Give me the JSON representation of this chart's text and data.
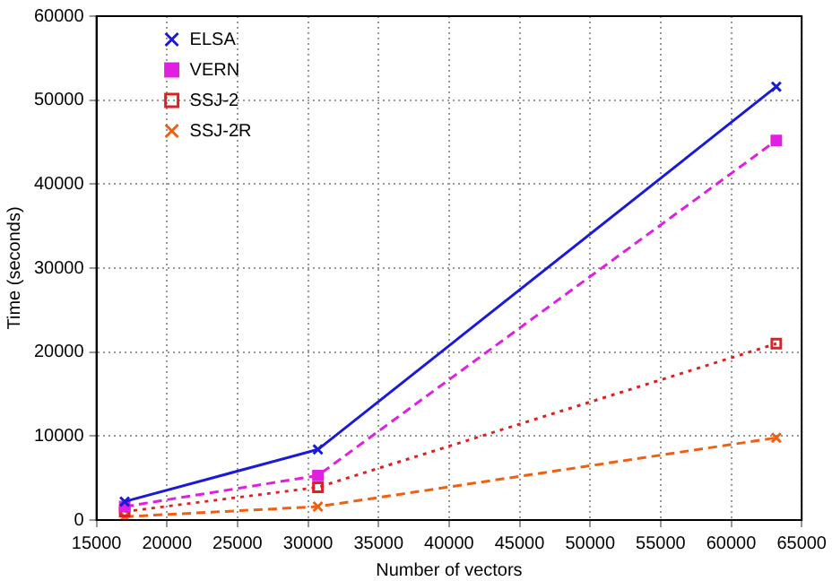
{
  "chart_data": {
    "type": "line",
    "xlabel": "Number of vectors",
    "ylabel": "Time (seconds)",
    "x": [
      17000,
      30700,
      63200
    ],
    "series": [
      {
        "name": "ELSA",
        "color": "#1a1adb",
        "values": [
          2200,
          8400,
          51600
        ],
        "marker": "cross",
        "line_style": "solid"
      },
      {
        "name": "VERN",
        "color": "#e020e0",
        "values": [
          1600,
          5300,
          45200
        ],
        "marker": "square",
        "line_style": "dashed"
      },
      {
        "name": "SSJ-2",
        "color": "#e02020",
        "values": [
          1000,
          3900,
          21000
        ],
        "marker": "square",
        "line_style": "dotted"
      },
      {
        "name": "SSJ-2R",
        "color": "#f06010",
        "values": [
          400,
          1600,
          9800
        ],
        "marker": "cross",
        "line_style": "dashed"
      }
    ],
    "xlim": [
      15000,
      65000
    ],
    "xticks": [
      15000,
      20000,
      25000,
      30000,
      35000,
      40000,
      45000,
      50000,
      55000,
      60000,
      65000
    ],
    "ylim": [
      0,
      60000
    ],
    "yticks": [
      0,
      10000,
      20000,
      30000,
      40000,
      50000,
      60000
    ],
    "grid": true,
    "legend": "top left"
  }
}
